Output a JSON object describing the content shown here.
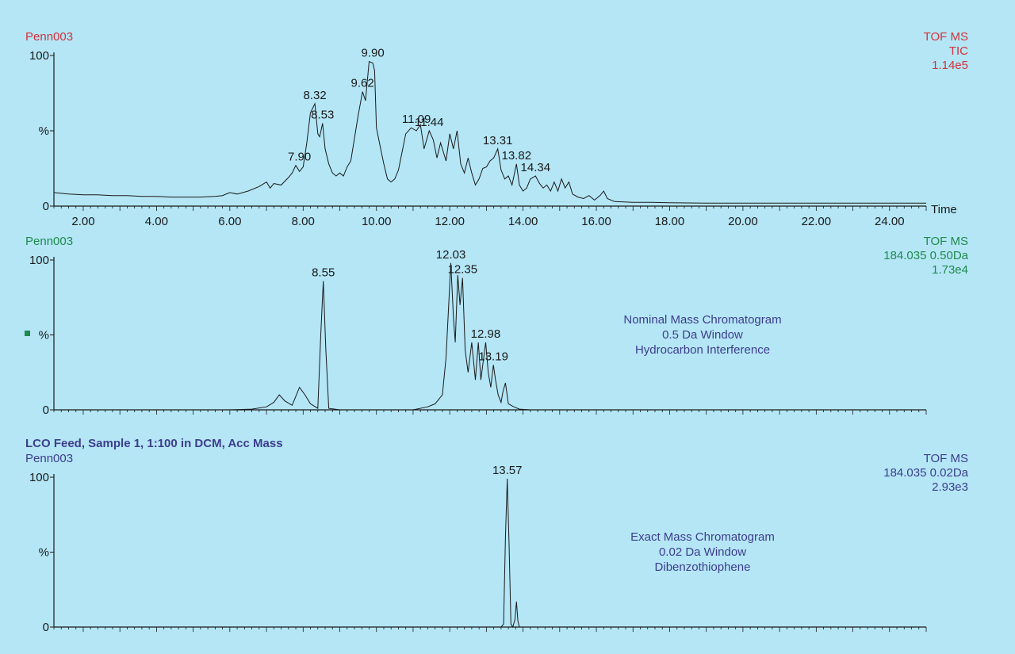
{
  "colors": {
    "background": "#b4e6f6",
    "trace": "#1a1a1a",
    "header_red": "#d3333a",
    "header_green": "#1f8a4c",
    "header_purple": "#3d3d8c"
  },
  "chart_data": [
    {
      "type": "line",
      "sample": "Penn003",
      "header_right": [
        "TOF MS",
        "TIC",
        "1.14e5"
      ],
      "xlabel": "Time",
      "xlim": [
        1.2,
        25.0
      ],
      "ylim": [
        0,
        100
      ],
      "ytick_labels": [
        "100",
        "%",
        "0"
      ],
      "xtick_labels": [
        "2.00",
        "4.00",
        "6.00",
        "8.00",
        "10.00",
        "12.00",
        "14.00",
        "16.00",
        "18.00",
        "20.00",
        "22.00",
        "24.00"
      ],
      "xtick_values": [
        2,
        4,
        6,
        8,
        10,
        12,
        14,
        16,
        18,
        20,
        22,
        24
      ],
      "series": [
        {
          "x": [
            1.2,
            1.6,
            2.0,
            2.4,
            2.8,
            3.2,
            3.6,
            4.0,
            4.4,
            4.8,
            5.2,
            5.6,
            5.8,
            6.0,
            6.2,
            6.5,
            6.8,
            7.0,
            7.1,
            7.2,
            7.4,
            7.6,
            7.7,
            7.8,
            7.9,
            8.0,
            8.1,
            8.2,
            8.32,
            8.4,
            8.45,
            8.53,
            8.6,
            8.7,
            8.8,
            8.9,
            9.0,
            9.1,
            9.2,
            9.3,
            9.4,
            9.5,
            9.62,
            9.7,
            9.8,
            9.9,
            9.95,
            10.0,
            10.1,
            10.2,
            10.3,
            10.4,
            10.5,
            10.6,
            10.7,
            10.8,
            10.95,
            11.09,
            11.2,
            11.3,
            11.44,
            11.55,
            11.65,
            11.75,
            11.9,
            12.0,
            12.1,
            12.2,
            12.3,
            12.4,
            12.5,
            12.6,
            12.7,
            12.8,
            12.9,
            13.0,
            13.1,
            13.2,
            13.31,
            13.4,
            13.5,
            13.6,
            13.7,
            13.82,
            13.9,
            14.0,
            14.1,
            14.2,
            14.34,
            14.45,
            14.55,
            14.65,
            14.75,
            14.85,
            14.95,
            15.05,
            15.15,
            15.25,
            15.35,
            15.5,
            15.65,
            15.8,
            15.95,
            16.1,
            16.2,
            16.3,
            16.5,
            17.0,
            17.5,
            18.0,
            19.0,
            20.0,
            21.0,
            22.0,
            23.0,
            24.0,
            25.0
          ],
          "y": [
            9,
            8,
            7.5,
            7.5,
            7,
            7,
            6.5,
            6.5,
            6,
            6,
            6,
            6.5,
            7,
            9,
            8,
            10,
            13,
            16,
            12,
            15,
            14,
            19,
            22,
            27,
            23,
            26,
            42,
            62,
            68,
            48,
            46,
            55,
            38,
            28,
            22,
            20,
            22,
            20,
            26,
            30,
            45,
            60,
            76,
            70,
            96,
            95,
            90,
            52,
            40,
            28,
            18,
            16,
            18,
            24,
            36,
            48,
            52,
            50,
            54,
            38,
            50,
            44,
            32,
            42,
            30,
            48,
            38,
            50,
            28,
            22,
            32,
            22,
            14,
            18,
            25,
            26,
            30,
            32,
            38,
            24,
            18,
            20,
            14,
            28,
            14,
            10,
            12,
            18,
            20,
            15,
            12,
            14,
            10,
            16,
            10,
            18,
            12,
            16,
            8,
            6,
            5,
            7,
            4,
            7,
            10,
            5,
            3,
            2.5,
            2.5,
            2.2,
            2,
            2,
            2,
            2,
            2,
            2,
            2
          ]
        }
      ],
      "peak_labels": [
        {
          "x": 7.9,
          "y": 27,
          "text": "7.90"
        },
        {
          "x": 8.32,
          "y": 68,
          "text": "8.32"
        },
        {
          "x": 8.53,
          "y": 55,
          "text": "8.53"
        },
        {
          "x": 9.62,
          "y": 76,
          "text": "9.62"
        },
        {
          "x": 9.9,
          "y": 96,
          "text": "9.90"
        },
        {
          "x": 11.09,
          "y": 52,
          "text": "11.09"
        },
        {
          "x": 11.44,
          "y": 50,
          "text": "11.44"
        },
        {
          "x": 13.31,
          "y": 38,
          "text": "13.31"
        },
        {
          "x": 13.82,
          "y": 28,
          "text": "13.82"
        },
        {
          "x": 14.34,
          "y": 20,
          "text": "14.34"
        }
      ],
      "annotation": []
    },
    {
      "type": "line",
      "sample": "Penn003",
      "header_right": [
        "TOF MS",
        "184.035 0.50Da",
        "1.73e4"
      ],
      "xlabel": "",
      "xlim": [
        1.2,
        25.0
      ],
      "ylim": [
        0,
        100
      ],
      "ytick_labels": [
        "100",
        "%",
        "0"
      ],
      "xtick_labels": [],
      "xtick_values": [],
      "series": [
        {
          "x": [
            1.2,
            6.0,
            6.6,
            7.0,
            7.2,
            7.35,
            7.5,
            7.7,
            7.9,
            8.05,
            8.2,
            8.4,
            8.48,
            8.55,
            8.62,
            8.7,
            9.0,
            10.0,
            11.0,
            11.4,
            11.6,
            11.8,
            11.9,
            12.03,
            12.1,
            12.15,
            12.22,
            12.28,
            12.35,
            12.42,
            12.5,
            12.6,
            12.7,
            12.78,
            12.85,
            12.9,
            12.98,
            13.05,
            13.12,
            13.19,
            13.25,
            13.32,
            13.4,
            13.45,
            13.52,
            13.6,
            13.75,
            13.9,
            14.2,
            25.0
          ],
          "y": [
            0,
            0,
            0.5,
            2,
            5,
            10,
            6,
            3,
            15,
            10,
            4,
            1,
            50,
            86,
            40,
            1,
            0,
            0,
            0,
            2,
            4,
            10,
            35,
            98,
            62,
            45,
            90,
            70,
            88,
            40,
            25,
            45,
            20,
            45,
            20,
            30,
            45,
            25,
            15,
            30,
            20,
            10,
            5,
            12,
            18,
            4,
            2,
            0.5,
            0,
            0
          ]
        }
      ],
      "peak_labels": [
        {
          "x": 8.55,
          "y": 86,
          "text": "8.55"
        },
        {
          "x": 12.03,
          "y": 98,
          "text": "12.03"
        },
        {
          "x": 12.35,
          "y": 88,
          "text": "12.35"
        },
        {
          "x": 12.98,
          "y": 45,
          "text": "12.98"
        },
        {
          "x": 13.19,
          "y": 30,
          "text": "13.19"
        }
      ],
      "annotation": [
        "Nominal Mass Chromatogram",
        "0.5 Da Window",
        "Hydrocarbon Interference"
      ]
    },
    {
      "type": "line",
      "title": "LCO Feed, Sample 1, 1:100 in DCM, Acc Mass",
      "sample": "Penn003",
      "header_right": [
        "TOF MS",
        "184.035 0.02Da",
        "2.93e3"
      ],
      "xlabel": "",
      "xlim": [
        1.2,
        25.0
      ],
      "ylim": [
        0,
        100
      ],
      "ytick_labels": [
        "100",
        "%",
        "0"
      ],
      "xtick_labels": [],
      "xtick_values": [],
      "series": [
        {
          "x": [
            1.2,
            13.4,
            13.47,
            13.52,
            13.57,
            13.62,
            13.67,
            13.72,
            13.78,
            13.82,
            13.86,
            13.9,
            25.0
          ],
          "y": [
            0,
            0,
            2,
            60,
            99,
            55,
            2,
            0,
            5,
            17,
            4,
            0,
            0
          ]
        }
      ],
      "peak_labels": [
        {
          "x": 13.57,
          "y": 99,
          "text": "13.57"
        }
      ],
      "annotation": [
        "Exact Mass Chromatogram",
        "0.02 Da Window",
        "Dibenzothiophene"
      ]
    }
  ]
}
